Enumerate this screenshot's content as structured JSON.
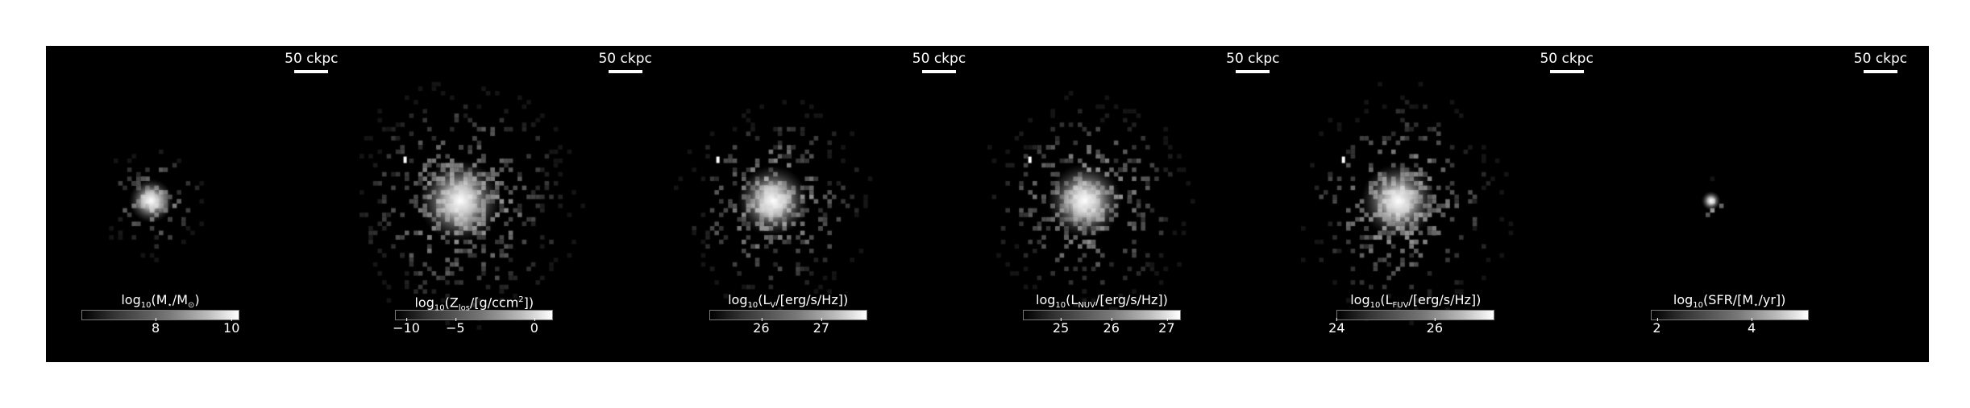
{
  "panels": [
    {
      "scale": "50 ckpc",
      "cbar": {
        "pre": "log",
        "base": "10",
        "mid1": "(M",
        "sub1": "⋆",
        "mid2": "/M",
        "sub2": "⊙",
        "mid3": ")",
        "sup": "",
        "post": ""
      },
      "ticks": [
        "8",
        "10"
      ],
      "blob": {
        "spread": 0.9,
        "count": 140,
        "extent": 0.45,
        "extra": false
      }
    },
    {
      "scale": "50 ckpc",
      "cbar": {
        "pre": "log",
        "base": "10",
        "mid1": "(Z",
        "sub1": "los",
        "mid2": "/[g/ccm",
        "sub2": "",
        "mid3": "]",
        "sup": "2",
        "post": ")"
      },
      "ticks": [
        "−10",
        "−5",
        "0"
      ],
      "blob": {
        "spread": 1.9,
        "count": 650,
        "extent": 1.0,
        "extra": true
      }
    },
    {
      "scale": "50 ckpc",
      "cbar": {
        "pre": "log",
        "base": "10",
        "mid1": "(L",
        "sub1": "V",
        "mid2": "/[erg/s/Hz])",
        "sub2": "",
        "mid3": "",
        "sup": "",
        "post": ""
      },
      "ticks": [
        "26",
        "27"
      ],
      "blob": {
        "spread": 1.6,
        "count": 420,
        "extent": 0.85,
        "extra": true
      }
    },
    {
      "scale": "50 ckpc",
      "cbar": {
        "pre": "log",
        "base": "10",
        "mid1": "(L",
        "sub1": "NUV",
        "mid2": "/[erg/s/Hz])",
        "sub2": "",
        "mid3": "",
        "sup": "",
        "post": ""
      },
      "ticks": [
        "25",
        "26",
        "27"
      ],
      "blob": {
        "spread": 1.7,
        "count": 480,
        "extent": 0.9,
        "extra": true
      }
    },
    {
      "scale": "50 ckpc",
      "cbar": {
        "pre": "log",
        "base": "10",
        "mid1": "(L",
        "sub1": "FUV",
        "mid2": "/[erg/s/Hz])",
        "sub2": "",
        "mid3": "",
        "sup": "",
        "post": ""
      },
      "ticks": [
        "24",
        "26"
      ],
      "blob": {
        "spread": 1.7,
        "count": 500,
        "extent": 0.95,
        "extra": true
      }
    },
    {
      "scale": "50 ckpc",
      "cbar": {
        "pre": "log",
        "base": "10",
        "mid1": "(SFR/[M",
        "sub1": "⋆",
        "mid2": "/yr])",
        "sub2": "",
        "mid3": "",
        "sup": "",
        "post": ""
      },
      "ticks": [
        "2",
        "4"
      ],
      "blob": {
        "spread": 0.25,
        "count": 8,
        "extent": 0.2,
        "extra": false
      }
    }
  ]
}
